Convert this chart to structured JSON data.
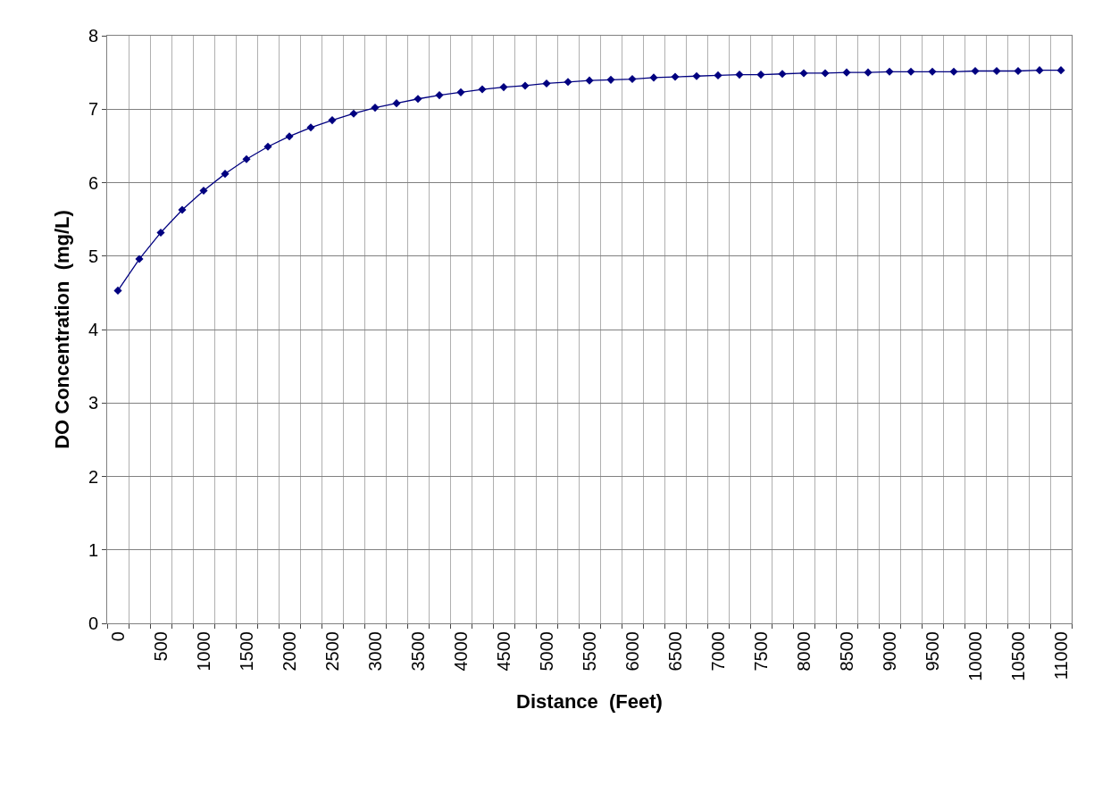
{
  "chart_data": {
    "type": "line",
    "xlabel": "Distance  (Feet)",
    "ylabel": "DO Concentration  (mg/L)",
    "categories": [
      "0",
      null,
      "500",
      null,
      "1000",
      null,
      "1500",
      null,
      "2000",
      null,
      "2500",
      null,
      "3000",
      null,
      "3500",
      null,
      "4000",
      null,
      "4500",
      null,
      "5000",
      null,
      "5500",
      null,
      "6000",
      null,
      "6500",
      null,
      "7000",
      null,
      "7500",
      null,
      "8000",
      null,
      "8500",
      null,
      "9000",
      null,
      "9500",
      null,
      "10000",
      null,
      "10500",
      null,
      "11000"
    ],
    "series": [
      {
        "color": "#000080",
        "values": [
          4.53,
          4.96,
          5.32,
          5.63,
          5.89,
          6.12,
          6.32,
          6.49,
          6.63,
          6.75,
          6.85,
          6.94,
          7.02,
          7.08,
          7.14,
          7.19,
          7.23,
          7.27,
          7.3,
          7.32,
          7.35,
          7.37,
          7.39,
          7.4,
          7.41,
          7.43,
          7.44,
          7.45,
          7.46,
          7.47,
          7.47,
          7.48,
          7.49,
          7.49,
          7.5,
          7.5,
          7.51,
          7.51,
          7.51,
          7.51,
          7.52,
          7.52,
          7.52,
          7.53,
          7.53
        ]
      }
    ],
    "ylim": [
      0,
      8
    ],
    "yticks": [
      0,
      1,
      2,
      3,
      4,
      5,
      6,
      7,
      8
    ],
    "grid": true,
    "marker": "diamond",
    "line_style": "solid"
  }
}
